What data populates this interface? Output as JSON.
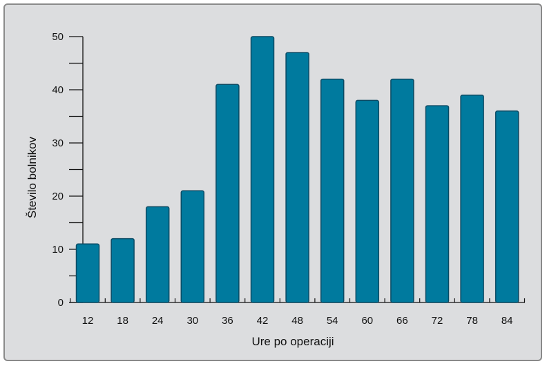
{
  "chart_data": {
    "type": "bar",
    "categories": [
      "12",
      "18",
      "24",
      "30",
      "36",
      "42",
      "48",
      "54",
      "60",
      "66",
      "72",
      "78",
      "84"
    ],
    "values": [
      11,
      12,
      18,
      21,
      41,
      50,
      47,
      42,
      38,
      42,
      37,
      39,
      36
    ],
    "xlabel": "Ure po operaciji",
    "ylabel": "Število bolnikov",
    "ylim": [
      0,
      50
    ],
    "yticks": [
      0,
      10,
      20,
      30,
      40,
      50
    ],
    "grid": false,
    "bar_color": "#007a9e",
    "bar_edge_color": "#0b4a63",
    "background_color": "#dcdddf"
  }
}
